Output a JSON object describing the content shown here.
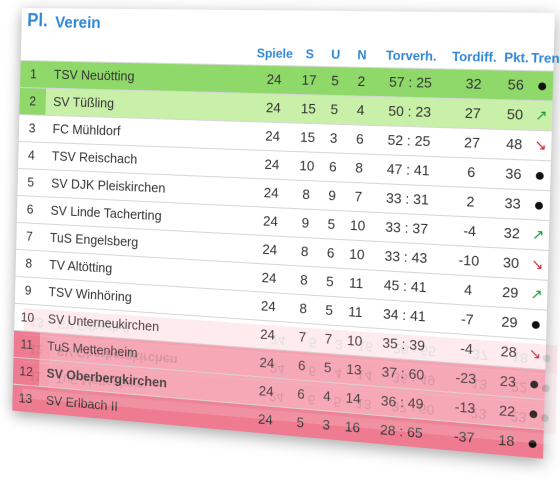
{
  "header": {
    "pl_label": "Pl.",
    "verein_label": "Verein"
  },
  "columns": {
    "spiele": "Spiele",
    "s": "S",
    "u": "U",
    "n": "N",
    "torverh": "Torverh.",
    "tordiff": "Tordiff.",
    "pkt": "Pkt.",
    "trend": "Trend"
  },
  "colors": {
    "promotion": "#8fd96a",
    "promotion_light": "#c8f0a8",
    "relegation": "#f7a7b5",
    "relegation_dark": "#ee7b90",
    "accent": "#2f86d6"
  },
  "rows": [
    {
      "pl": "1",
      "verein": "TSV Neuötting",
      "spiele": "24",
      "s": "17",
      "u": "5",
      "n": "2",
      "torverh": "57 : 25",
      "tordiff": "32",
      "pkt": "56",
      "trend": "dot"
    },
    {
      "pl": "2",
      "verein": "SV Tüßling",
      "spiele": "24",
      "s": "15",
      "u": "5",
      "n": "4",
      "torverh": "50 : 23",
      "tordiff": "27",
      "pkt": "50",
      "trend": "up"
    },
    {
      "pl": "3",
      "verein": "FC Mühldorf",
      "spiele": "24",
      "s": "15",
      "u": "3",
      "n": "6",
      "torverh": "52 : 25",
      "tordiff": "27",
      "pkt": "48",
      "trend": "down"
    },
    {
      "pl": "4",
      "verein": "TSV Reischach",
      "spiele": "24",
      "s": "10",
      "u": "6",
      "n": "8",
      "torverh": "47 : 41",
      "tordiff": "6",
      "pkt": "36",
      "trend": "dot"
    },
    {
      "pl": "5",
      "verein": "SV DJK Pleiskirchen",
      "spiele": "24",
      "s": "8",
      "u": "9",
      "n": "7",
      "torverh": "33 : 31",
      "tordiff": "2",
      "pkt": "33",
      "trend": "dot"
    },
    {
      "pl": "6",
      "verein": "SV Linde Tacherting",
      "spiele": "24",
      "s": "9",
      "u": "5",
      "n": "10",
      "torverh": "33 : 37",
      "tordiff": "-4",
      "pkt": "32",
      "trend": "up"
    },
    {
      "pl": "7",
      "verein": "TuS Engelsberg",
      "spiele": "24",
      "s": "8",
      "u": "6",
      "n": "10",
      "torverh": "33 : 43",
      "tordiff": "-10",
      "pkt": "30",
      "trend": "down"
    },
    {
      "pl": "8",
      "verein": "TV Altötting",
      "spiele": "24",
      "s": "8",
      "u": "5",
      "n": "11",
      "torverh": "45 : 41",
      "tordiff": "4",
      "pkt": "29",
      "trend": "up"
    },
    {
      "pl": "9",
      "verein": "TSV Winhöring",
      "spiele": "24",
      "s": "8",
      "u": "5",
      "n": "11",
      "torverh": "34 : 41",
      "tordiff": "-7",
      "pkt": "29",
      "trend": "dot"
    },
    {
      "pl": "10",
      "verein": "SV Unterneukirchen",
      "spiele": "24",
      "s": "7",
      "u": "7",
      "n": "10",
      "torverh": "35 : 39",
      "tordiff": "-4",
      "pkt": "28",
      "trend": "down"
    },
    {
      "pl": "11",
      "verein": "TuS Mettenheim",
      "spiele": "24",
      "s": "6",
      "u": "5",
      "n": "13",
      "torverh": "37 : 60",
      "tordiff": "-23",
      "pkt": "23",
      "trend": "dot"
    },
    {
      "pl": "12",
      "verein": "SV Oberbergkirchen",
      "spiele": "24",
      "s": "6",
      "u": "4",
      "n": "14",
      "torverh": "36 : 49",
      "tordiff": "-13",
      "pkt": "22",
      "trend": "dot"
    },
    {
      "pl": "13",
      "verein": "SV Erlbach II",
      "spiele": "24",
      "s": "5",
      "u": "3",
      "n": "16",
      "torverh": "28 : 65",
      "tordiff": "-37",
      "pkt": "18",
      "trend": "dot"
    }
  ]
}
